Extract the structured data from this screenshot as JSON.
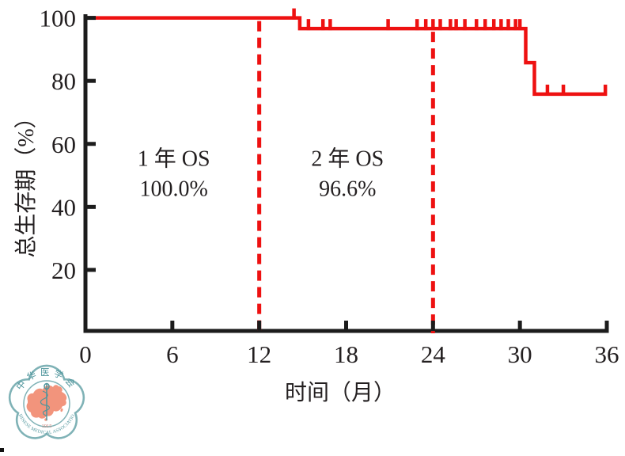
{
  "colors": {
    "curve_red": "#ee1111",
    "axis_black": "#1c1c1c",
    "label_text": "#231f20",
    "logo_teal": "#7fb2b6",
    "logo_teal_dark": "#4f959c",
    "logo_salmon": "#f2947c",
    "logo_year_red": "#c4756a"
  },
  "chart_data": {
    "type": "line",
    "subtype": "kaplan-meier step survival curve",
    "title": "",
    "xlabel": "时间（月）",
    "ylabel": "总生存期（%）",
    "xlim": [
      0,
      36
    ],
    "ylim": [
      0,
      100
    ],
    "xticks": [
      0,
      6,
      12,
      18,
      24,
      30,
      36
    ],
    "yticks": [
      20,
      40,
      60,
      80,
      100
    ],
    "grid": false,
    "legend": "none",
    "series": [
      {
        "name": "总生存期 (OS)",
        "color": "#ee1111",
        "step_points": [
          [
            0,
            100
          ],
          [
            14.8,
            100
          ],
          [
            14.8,
            96.6
          ],
          [
            30.4,
            96.6
          ],
          [
            30.4,
            85.8
          ],
          [
            31.0,
            85.8
          ],
          [
            31.0,
            75.8
          ],
          [
            36,
            75.8
          ]
        ],
        "censor_marks": [
          [
            14.4,
            100
          ],
          [
            15.4,
            96.6
          ],
          [
            16.4,
            96.6
          ],
          [
            16.9,
            96.6
          ],
          [
            20.9,
            96.6
          ],
          [
            22.9,
            96.6
          ],
          [
            23.5,
            96.6
          ],
          [
            24.0,
            96.6
          ],
          [
            24.5,
            96.6
          ],
          [
            25.2,
            96.6
          ],
          [
            25.6,
            96.6
          ],
          [
            26.2,
            96.6
          ],
          [
            27.0,
            96.6
          ],
          [
            27.6,
            96.6
          ],
          [
            28.2,
            96.6
          ],
          [
            28.7,
            96.6
          ],
          [
            29.2,
            96.6
          ],
          [
            29.7,
            96.6
          ],
          [
            30.0,
            96.6
          ],
          [
            31.9,
            75.8
          ],
          [
            33.0,
            75.8
          ],
          [
            35.9,
            75.8
          ]
        ]
      }
    ],
    "reference_lines": [
      {
        "axis": "x",
        "value": 12,
        "style": "dashed",
        "color": "#ee1111"
      },
      {
        "axis": "x",
        "value": 24,
        "style": "dashed",
        "color": "#ee1111"
      }
    ],
    "annotations": [
      {
        "name": "os-1-year",
        "x": 6.1,
        "lines": [
          {
            "text": "1 年 OS",
            "y": 55.5
          },
          {
            "text": "100.0%",
            "y": 46.0
          }
        ]
      },
      {
        "name": "os-2-year",
        "x": 18.1,
        "lines": [
          {
            "text": "2 年 OS",
            "y": 55.5
          },
          {
            "text": "96.6%",
            "y": 46.0
          }
        ]
      }
    ]
  },
  "logo": {
    "cn_name": "中华医学会",
    "en_name": "CHINESE MEDICAL ASSOCIATION",
    "founding_year": "1915"
  }
}
